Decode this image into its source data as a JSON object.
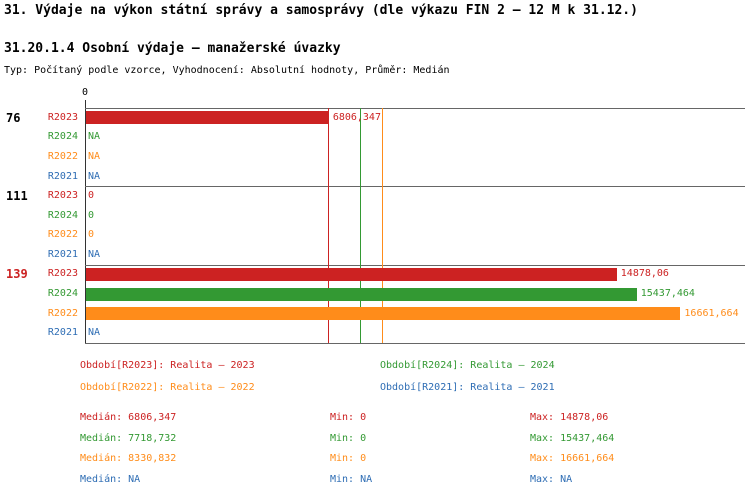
{
  "chart_data": {
    "type": "bar",
    "orientation": "horizontal",
    "title": "31. Výdaje na výkon státní správy a samosprávy (dle výkazu FIN 2 – 12 M k 31.12.)",
    "subtitle": "31.20.1.4 Osobní výdaje – manažerské úvazky",
    "meta": "Typ: Počítaný podle vzorce, Vyhodnocení: Absolutní hodnoty, Průměr: Medián",
    "axis_origin_label": "0",
    "xmax": 18500,
    "grid": "group-separators",
    "legend_position": "bottom",
    "series_colors": {
      "R2023": "#cc2222",
      "R2024": "#339933",
      "R2022": "#ff8c1a",
      "R2021": "#2e6db4"
    },
    "groups": [
      {
        "label": "76",
        "label_color": "#000000",
        "rows": [
          {
            "series": "R2023",
            "value": 6806.347,
            "display": "6806,347"
          },
          {
            "series": "R2024",
            "value": null,
            "display": "NA"
          },
          {
            "series": "R2022",
            "value": null,
            "display": "NA"
          },
          {
            "series": "R2021",
            "value": null,
            "display": "NA"
          }
        ]
      },
      {
        "label": "111",
        "label_color": "#000000",
        "rows": [
          {
            "series": "R2023",
            "value": 0,
            "display": "0"
          },
          {
            "series": "R2024",
            "value": 0,
            "display": "0"
          },
          {
            "series": "R2022",
            "value": 0,
            "display": "0"
          },
          {
            "series": "R2021",
            "value": null,
            "display": "NA"
          }
        ]
      },
      {
        "label": "139",
        "label_color": "#cc2222",
        "rows": [
          {
            "series": "R2023",
            "value": 14878.06,
            "display": "14878,06"
          },
          {
            "series": "R2024",
            "value": 15437.464,
            "display": "15437,464"
          },
          {
            "series": "R2022",
            "value": 16661.664,
            "display": "16661,664"
          },
          {
            "series": "R2021",
            "value": null,
            "display": "NA"
          }
        ]
      }
    ],
    "median_lines": [
      {
        "series": "R2023",
        "value": 6806.347
      },
      {
        "series": "R2024",
        "value": 7718.732
      },
      {
        "series": "R2022",
        "value": 8330.832
      }
    ],
    "legend": [
      {
        "series": "R2023",
        "label": "Období[R2023]:",
        "value": "Realita – 2023"
      },
      {
        "series": "R2024",
        "label": "Období[R2024]:",
        "value": "Realita – 2024"
      },
      {
        "series": "R2022",
        "label": "Období[R2022]:",
        "value": "Realita – 2022"
      },
      {
        "series": "R2021",
        "label": "Období[R2021]:",
        "value": "Realita – 2021"
      }
    ],
    "stat_labels": {
      "median": "Medián:",
      "min": "Min:",
      "max": "Max:"
    },
    "stats": [
      {
        "series": "R2023",
        "median": "6806,347",
        "min": "0",
        "max": "14878,06"
      },
      {
        "series": "R2024",
        "median": "7718,732",
        "min": "0",
        "max": "15437,464"
      },
      {
        "series": "R2022",
        "median": "8330,832",
        "min": "0",
        "max": "16661,664"
      },
      {
        "series": "R2021",
        "median": "NA",
        "min": "NA",
        "max": "NA"
      }
    ]
  }
}
